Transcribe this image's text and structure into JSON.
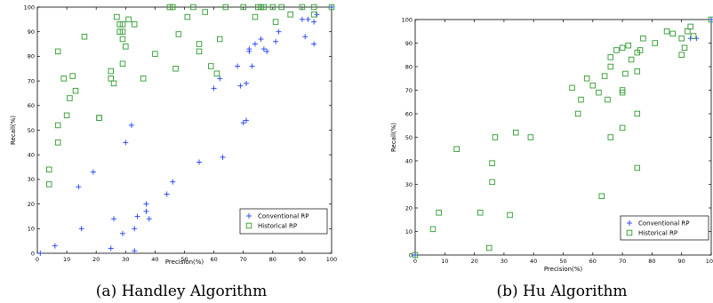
{
  "chart_data": [
    {
      "type": "scatter",
      "caption": "(a) Handley Algorithm",
      "xlabel": "Precision(%)",
      "ylabel": "Recall(%)",
      "xlim": [
        0,
        100
      ],
      "ylim": [
        0,
        100
      ],
      "xticks": [
        "0",
        "10",
        "20",
        "30",
        "40",
        "50",
        "60",
        "70",
        "80",
        "90",
        "100"
      ],
      "yticks": [
        "0",
        "10",
        "20",
        "30",
        "40",
        "50",
        "60",
        "70",
        "80",
        "90",
        "100"
      ],
      "grid": false,
      "legend_position": "bottom-right",
      "series": [
        {
          "name": "Conventional RP",
          "marker": "plus",
          "color": "#1f3fff",
          "points": [
            [
              1,
              0
            ],
            [
              6,
              3
            ],
            [
              14,
              27
            ],
            [
              15,
              10
            ],
            [
              19,
              33
            ],
            [
              25,
              2
            ],
            [
              26,
              14
            ],
            [
              29,
              8
            ],
            [
              30,
              45
            ],
            [
              32,
              52
            ],
            [
              33,
              10
            ],
            [
              34,
              15
            ],
            [
              37,
              17
            ],
            [
              37,
              20
            ],
            [
              38,
              14
            ],
            [
              44,
              24
            ],
            [
              46,
              29
            ],
            [
              55,
              37
            ],
            [
              63,
              39
            ],
            [
              60,
              67
            ],
            [
              62,
              71
            ],
            [
              68,
              76
            ],
            [
              69,
              68
            ],
            [
              71,
              54
            ],
            [
              70,
              53
            ],
            [
              71,
              69
            ],
            [
              72,
              83
            ],
            [
              72,
              82
            ],
            [
              73,
              76
            ],
            [
              74,
              85
            ],
            [
              76,
              87
            ],
            [
              77,
              83
            ],
            [
              78,
              82
            ],
            [
              81,
              86
            ],
            [
              82,
              90
            ],
            [
              90,
              95
            ],
            [
              92,
              95
            ],
            [
              91,
              88
            ],
            [
              94,
              85
            ],
            [
              94,
              94
            ],
            [
              95,
              97
            ],
            [
              100,
              100
            ],
            [
              33,
              1
            ]
          ]
        },
        {
          "name": "Historical RP",
          "marker": "square",
          "color": "#2e9a2e",
          "points": [
            [
              4,
              28
            ],
            [
              4,
              34
            ],
            [
              7,
              52
            ],
            [
              7,
              45
            ],
            [
              7,
              82
            ],
            [
              9,
              71
            ],
            [
              10,
              56
            ],
            [
              11,
              63
            ],
            [
              12,
              72
            ],
            [
              13,
              66
            ],
            [
              16,
              88
            ],
            [
              21,
              55
            ],
            [
              21,
              55
            ],
            [
              25,
              74
            ],
            [
              25,
              71
            ],
            [
              26,
              69
            ],
            [
              27,
              96
            ],
            [
              28,
              90
            ],
            [
              28,
              93
            ],
            [
              29,
              90
            ],
            [
              29,
              93
            ],
            [
              29,
              87
            ],
            [
              29,
              77
            ],
            [
              30,
              84
            ],
            [
              31,
              95
            ],
            [
              33,
              93
            ],
            [
              36,
              71
            ],
            [
              40,
              81
            ],
            [
              45,
              100
            ],
            [
              46,
              100
            ],
            [
              47,
              75
            ],
            [
              48,
              89
            ],
            [
              51,
              96
            ],
            [
              53,
              100
            ],
            [
              55,
              85
            ],
            [
              55,
              82
            ],
            [
              57,
              98
            ],
            [
              59,
              76
            ],
            [
              61,
              73
            ],
            [
              62,
              87
            ],
            [
              64,
              100
            ],
            [
              70,
              100
            ],
            [
              74,
              96
            ],
            [
              75,
              100
            ],
            [
              76,
              100
            ],
            [
              77,
              100
            ],
            [
              80,
              100
            ],
            [
              81,
              94
            ],
            [
              83,
              100
            ],
            [
              86,
              97
            ],
            [
              90,
              100
            ],
            [
              94,
              100
            ],
            [
              94,
              97
            ],
            [
              100,
              100
            ]
          ]
        }
      ]
    },
    {
      "type": "scatter",
      "caption": "(b) Hu Algorithm",
      "xlabel": "Precision(%)",
      "ylabel": "Recall(%)",
      "xlim": [
        0,
        100
      ],
      "ylim": [
        0,
        100
      ],
      "xticks": [
        "0",
        "10",
        "20",
        "30",
        "40",
        "50",
        "60",
        "70",
        "80",
        "90",
        "100"
      ],
      "yticks": [
        "0",
        "10",
        "20",
        "30",
        "40",
        "50",
        "60",
        "70",
        "80",
        "90",
        "100"
      ],
      "grid": false,
      "legend_position": "bottom-right",
      "series": [
        {
          "name": "Conventional RP",
          "marker": "plus",
          "color": "#1f3fff",
          "points": [
            [
              0,
              0
            ],
            [
              93,
              92
            ],
            [
              95,
              92
            ],
            [
              100,
              100
            ]
          ]
        },
        {
          "name": "Historical RP",
          "marker": "square",
          "color": "#2e9a2e",
          "points": [
            [
              0,
              0
            ],
            [
              6,
              11
            ],
            [
              8,
              18
            ],
            [
              14,
              45
            ],
            [
              22,
              18
            ],
            [
              25,
              3
            ],
            [
              26,
              39
            ],
            [
              26,
              31
            ],
            [
              27,
              50
            ],
            [
              32,
              17
            ],
            [
              34,
              52
            ],
            [
              39,
              50
            ],
            [
              53,
              71
            ],
            [
              55,
              60
            ],
            [
              56,
              66
            ],
            [
              58,
              75
            ],
            [
              60,
              72
            ],
            [
              62,
              69
            ],
            [
              63,
              25
            ],
            [
              64,
              76
            ],
            [
              65,
              66
            ],
            [
              66,
              80
            ],
            [
              66,
              84
            ],
            [
              66,
              50
            ],
            [
              68,
              87
            ],
            [
              70,
              88
            ],
            [
              70,
              70
            ],
            [
              70,
              69
            ],
            [
              70,
              54
            ],
            [
              71,
              77
            ],
            [
              72,
              89
            ],
            [
              73,
              83
            ],
            [
              75,
              86
            ],
            [
              75,
              60
            ],
            [
              75,
              37
            ],
            [
              75,
              78
            ],
            [
              76,
              87
            ],
            [
              77,
              92
            ],
            [
              81,
              90
            ],
            [
              85,
              95
            ],
            [
              87,
              94
            ],
            [
              90,
              92
            ],
            [
              90,
              85
            ],
            [
              91,
              88
            ],
            [
              92,
              95
            ],
            [
              93,
              97
            ],
            [
              94,
              93
            ],
            [
              100,
              100
            ]
          ]
        }
      ]
    }
  ]
}
